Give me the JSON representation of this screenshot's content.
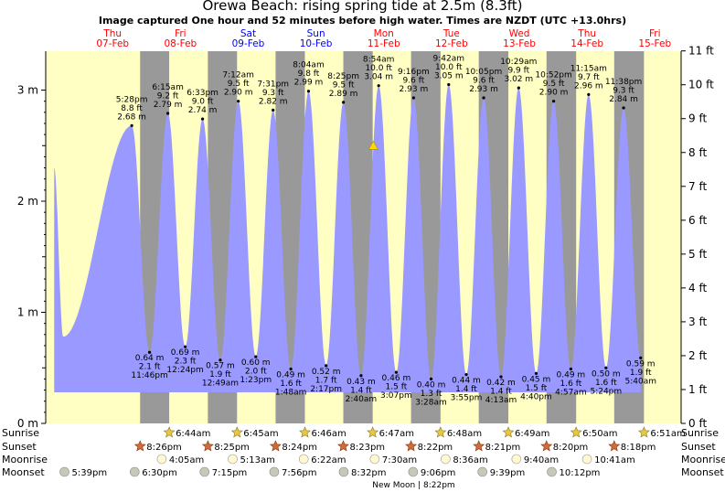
{
  "header": {
    "title": "Orewa Beach: rising  spring tide at 2.5m (8.3ft)",
    "subtitle": "Image captured One hour and 52 minutes before high water. Times are NZDT (UTC +13.0hrs)"
  },
  "days": [
    {
      "name": "Thu",
      "date": "07-Feb",
      "weekend": false
    },
    {
      "name": "Fri",
      "date": "08-Feb",
      "weekend": false
    },
    {
      "name": "Sat",
      "date": "09-Feb",
      "weekend": true
    },
    {
      "name": "Sun",
      "date": "10-Feb",
      "weekend": true
    },
    {
      "name": "Mon",
      "date": "11-Feb",
      "weekend": false
    },
    {
      "name": "Tue",
      "date": "12-Feb",
      "weekend": false
    },
    {
      "name": "Wed",
      "date": "13-Feb",
      "weekend": false
    },
    {
      "name": "Thu",
      "date": "14-Feb",
      "weekend": false
    },
    {
      "name": "Fri",
      "date": "15-Feb",
      "weekend": false
    }
  ],
  "colors": {
    "day_bg": "#ffffc4",
    "night_bg": "#999999",
    "tide_fill": "#9999ff",
    "weekday_text": "#ff0000",
    "weekend_text": "#0000ff",
    "now_marker": "#ffd700"
  },
  "chart_data": {
    "type": "area",
    "title": "Orewa Beach: rising  spring tide at 2.5m (8.3ft)",
    "ylabel_left": "m",
    "ylabel_right": "ft",
    "ylim_m": [
      0,
      3.35
    ],
    "left_ticks": [
      "0 m",
      "1 m",
      "2 m",
      "3 m"
    ],
    "right_ticks": [
      "0 ft",
      "1 ft",
      "2 ft",
      "3 ft",
      "4 ft",
      "5 ft",
      "6 ft",
      "7 ft",
      "8 ft",
      "9 ft",
      "10 ft",
      "11 ft"
    ],
    "time_range_hours": [
      -13,
      212
    ],
    "nights": [
      [
        20.42,
        30.73
      ],
      [
        44.42,
        54.75
      ],
      [
        68.4,
        78.77
      ],
      [
        92.38,
        102.78
      ],
      [
        116.37,
        126.8
      ],
      [
        140.35,
        150.82
      ],
      [
        164.33,
        174.83
      ],
      [
        188.3,
        198.85
      ]
    ],
    "tides": [
      {
        "t": -10,
        "m": 2.3,
        "kind": "start"
      },
      {
        "t": -6.8,
        "m": 0.78,
        "kind": "low"
      },
      {
        "t": 17.47,
        "time": "5:28 pm",
        "m": 2.68,
        "ft": "8.8 ft",
        "label_m": "2.68 m",
        "kind": "high"
      },
      {
        "t": 23.77,
        "time": "11:46 pm",
        "m": 0.64,
        "ft": "2.1 ft",
        "label_m": "0.64 m",
        "kind": "low"
      },
      {
        "t": 30.25,
        "time": "6:15 am",
        "m": 2.79,
        "ft": "9.2 ft",
        "label_m": "2.79 m",
        "kind": "high"
      },
      {
        "t": 36.4,
        "time": "12:24 pm",
        "m": 0.69,
        "ft": "2.3 ft",
        "label_m": "0.69 m",
        "kind": "low"
      },
      {
        "t": 42.55,
        "time": "6:33 pm",
        "m": 2.74,
        "ft": "9.0 ft",
        "label_m": "2.74 m",
        "kind": "high"
      },
      {
        "t": 48.82,
        "time": "12:49 am",
        "m": 0.57,
        "ft": "1.9 ft",
        "label_m": "0.57 m",
        "kind": "low"
      },
      {
        "t": 55.2,
        "time": "7:12 am",
        "m": 2.9,
        "ft": "9.5 ft",
        "label_m": "2.90 m",
        "kind": "high"
      },
      {
        "t": 61.38,
        "time": "1:23 pm",
        "m": 0.6,
        "ft": "2.0 ft",
        "label_m": "0.60 m",
        "kind": "low"
      },
      {
        "t": 67.52,
        "time": "7:31 pm",
        "m": 2.82,
        "ft": "9.3 ft",
        "label_m": "2.82 m",
        "kind": "high"
      },
      {
        "t": 73.8,
        "time": "1:48 am",
        "m": 0.49,
        "ft": "1.6 ft",
        "label_m": "0.49 m",
        "kind": "low"
      },
      {
        "t": 80.07,
        "time": "8:04 am",
        "m": 2.99,
        "ft": "9.8 ft",
        "label_m": "2.99 m",
        "kind": "high"
      },
      {
        "t": 86.28,
        "time": "2:17 pm",
        "m": 0.52,
        "ft": "1.7 ft",
        "label_m": "0.52 m",
        "kind": "low"
      },
      {
        "t": 92.42,
        "time": "8:25 pm",
        "m": 2.89,
        "ft": "9.5 ft",
        "label_m": "2.89 m",
        "kind": "high"
      },
      {
        "t": 98.67,
        "time": "2:40 am",
        "m": 0.43,
        "ft": "1.4 ft",
        "label_m": "0.43 m",
        "kind": "low"
      },
      {
        "t": 104.9,
        "time": "8:54 am",
        "m": 3.04,
        "ft": "10.0 ft",
        "label_m": "3.04 m",
        "kind": "high"
      },
      {
        "t": 111.12,
        "time": "3:07 pm",
        "m": 0.46,
        "ft": "1.5 ft",
        "label_m": "0.46 m",
        "kind": "low"
      },
      {
        "t": 117.27,
        "time": "9:16 pm",
        "m": 2.93,
        "ft": "9.6 ft",
        "label_m": "2.93 m",
        "kind": "high"
      },
      {
        "t": 123.47,
        "time": "3:28 am",
        "m": 0.4,
        "ft": "1.3 ft",
        "label_m": "0.40 m",
        "kind": "low"
      },
      {
        "t": 129.7,
        "time": "9:42 am",
        "m": 3.05,
        "ft": "10.0 ft",
        "label_m": "3.05 m",
        "kind": "high"
      },
      {
        "t": 135.92,
        "time": "3:55 pm",
        "m": 0.44,
        "ft": "1.4 ft",
        "label_m": "0.44 m",
        "kind": "low"
      },
      {
        "t": 142.08,
        "time": "10:05 pm",
        "m": 2.93,
        "ft": "9.6 ft",
        "label_m": "2.93 m",
        "kind": "high"
      },
      {
        "t": 148.22,
        "time": "4:13 am",
        "m": 0.42,
        "ft": "1.4 ft",
        "label_m": "0.42 m",
        "kind": "low"
      },
      {
        "t": 154.48,
        "time": "10:29 am",
        "m": 3.02,
        "ft": "9.9 ft",
        "label_m": "3.02 m",
        "kind": "high"
      },
      {
        "t": 160.67,
        "time": "4:40 pm",
        "m": 0.45,
        "ft": "1.5 ft",
        "label_m": "0.45 m",
        "kind": "low"
      },
      {
        "t": 166.87,
        "time": "10:52 pm",
        "m": 2.9,
        "ft": "9.5 ft",
        "label_m": "2.90 m",
        "kind": "high"
      },
      {
        "t": 172.95,
        "time": "4:57 am",
        "m": 0.49,
        "ft": "1.6 ft",
        "label_m": "0.49 m",
        "kind": "low"
      },
      {
        "t": 179.25,
        "time": "11:15 am",
        "m": 2.96,
        "ft": "9.7 ft",
        "label_m": "2.96 m",
        "kind": "high"
      },
      {
        "t": 185.4,
        "time": "5:24 pm",
        "m": 0.5,
        "ft": "1.6 ft",
        "label_m": "0.50 m",
        "kind": "low"
      },
      {
        "t": 191.63,
        "time": "11:38 pm",
        "m": 2.84,
        "ft": "9.3 ft",
        "label_m": "2.84 m",
        "kind": "high"
      },
      {
        "t": 197.67,
        "time": "5:40 am",
        "m": 0.59,
        "ft": "1.9 ft",
        "label_m": "0.59 m",
        "kind": "low"
      }
    ],
    "now": {
      "t": 103.03,
      "m": 2.5
    }
  },
  "astro": {
    "row_labels": [
      "Sunrise",
      "Sunset",
      "Moonrise",
      "Moonset"
    ],
    "sunrise": [
      {
        "t": 30.73,
        "label": "6:44am"
      },
      {
        "t": 54.75,
        "label": "6:45am"
      },
      {
        "t": 78.77,
        "label": "6:46am"
      },
      {
        "t": 102.78,
        "label": "6:47am"
      },
      {
        "t": 126.8,
        "label": "6:48am"
      },
      {
        "t": 150.82,
        "label": "6:49am"
      },
      {
        "t": 174.83,
        "label": "6:50am"
      },
      {
        "t": 198.85,
        "label": "6:51am"
      }
    ],
    "sunset": [
      {
        "t": 20.43,
        "label": "8:26pm"
      },
      {
        "t": 44.42,
        "label": "8:25pm"
      },
      {
        "t": 68.4,
        "label": "8:24pm"
      },
      {
        "t": 92.38,
        "label": "8:23pm"
      },
      {
        "t": 116.37,
        "label": "8:22pm"
      },
      {
        "t": 140.35,
        "label": "8:21pm"
      },
      {
        "t": 164.33,
        "label": "8:20pm"
      },
      {
        "t": 188.3,
        "label": "8:18pm"
      }
    ],
    "moonrise": [
      {
        "t": 28.08,
        "label": "4:05am"
      },
      {
        "t": 53.22,
        "label": "5:13am"
      },
      {
        "t": 78.37,
        "label": "6:22am"
      },
      {
        "t": 103.5,
        "label": "7:30am"
      },
      {
        "t": 128.6,
        "label": "8:36am"
      },
      {
        "t": 153.67,
        "label": "9:40am"
      },
      {
        "t": 178.68,
        "label": "10:41am"
      }
    ],
    "moonset": [
      {
        "t": -6.35,
        "label": "5:39pm"
      },
      {
        "t": 18.5,
        "label": "6:30pm"
      },
      {
        "t": 43.25,
        "label": "7:15pm"
      },
      {
        "t": 67.93,
        "label": "7:56pm"
      },
      {
        "t": 92.53,
        "label": "8:32pm"
      },
      {
        "t": 117.1,
        "label": "9:06pm"
      },
      {
        "t": 141.65,
        "label": "9:39pm"
      },
      {
        "t": 166.2,
        "label": "10:12pm"
      }
    ],
    "moon_phase": {
      "t": 116.0,
      "label": "New Moon | 8:22pm"
    }
  }
}
